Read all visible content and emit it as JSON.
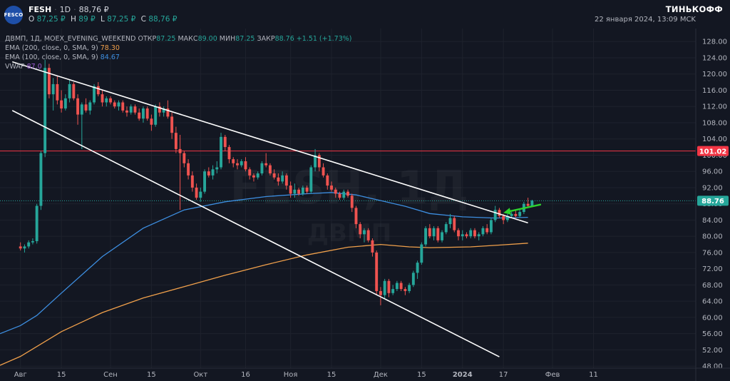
{
  "header": {
    "logo_text": "FESCO",
    "symbol": "FESH",
    "interval": "1D",
    "last_price": "88,76 ₽",
    "ohlc": [
      {
        "label": "O",
        "value": "87,25 ₽"
      },
      {
        "label": "H",
        "value": "89 ₽"
      },
      {
        "label": "L",
        "value": "87,25 ₽"
      },
      {
        "label": "C",
        "value": "88,76 ₽"
      }
    ],
    "brand": "ТИНЬКОФФ",
    "datetime": "22 января 2024, 13:09 MCK"
  },
  "indicators": {
    "main_line": {
      "prefix": "ДВМП, 1Д, MOEX_EVENING_WEEKEND",
      "open_label": "ОТКР",
      "open_value": "87.25",
      "high_label": "МАКС",
      "high_value": "89.00",
      "low_label": "МИН",
      "low_value": "87.25",
      "close_label": "ЗАКР",
      "close_value": "88.76",
      "change": "+1.51 (+1.73%)"
    },
    "ema200": {
      "label": "EMA (200, close, 0, SMA, 9)",
      "value": "78.30"
    },
    "ema100": {
      "label": "EMA (100, close, 0, SMA, 9)",
      "value": "84.67"
    },
    "vwap": {
      "label": "VWAP",
      "value": "87.0"
    }
  },
  "watermark": {
    "symbol": "FESH, 1Д",
    "name": "ДВМП"
  },
  "chart_data": {
    "type": "candlestick",
    "y_axis": {
      "ticks": [
        48,
        52,
        56,
        60,
        64,
        68,
        72,
        76,
        80,
        84,
        88,
        92,
        96,
        100,
        104,
        108,
        112,
        116,
        120,
        124,
        128
      ],
      "tick_labels": [
        "48.00",
        "52.00",
        "56.00",
        "60.00",
        "64.00",
        "68.00",
        "72.00",
        "76.00",
        "80.00",
        "84.00",
        "88.00",
        "92.00",
        "96.00",
        "100.00",
        "104.00",
        "108.00",
        "112.00",
        "116.00",
        "120.00",
        "124.00",
        "128.00"
      ],
      "range": [
        47.5,
        130.5
      ]
    },
    "x_axis": {
      "range_index": [
        -5,
        165
      ],
      "ticks": [
        {
          "label": "Авг",
          "i": 0
        },
        {
          "label": "15",
          "i": 10
        },
        {
          "label": "Сен",
          "i": 22
        },
        {
          "label": "15",
          "i": 32
        },
        {
          "label": "Окт",
          "i": 44
        },
        {
          "label": "16",
          "i": 55
        },
        {
          "label": "Ноя",
          "i": 66
        },
        {
          "label": "15",
          "i": 76
        },
        {
          "label": "Дек",
          "i": 88
        },
        {
          "label": "15",
          "i": 98
        },
        {
          "label": "2024",
          "i": 108
        },
        {
          "label": "17",
          "i": 118
        },
        {
          "label": "Фев",
          "i": 130
        },
        {
          "label": "11",
          "i": 140
        }
      ]
    },
    "price_labels": [
      {
        "value": 101.02,
        "text": "101.02",
        "color": "#f23645"
      },
      {
        "value": 88.76,
        "text": "88.76",
        "color": "#26a69a"
      }
    ],
    "horizontal_line": {
      "value": 101.02,
      "color": "#f23645"
    },
    "last_price_line": {
      "value": 88.76,
      "color": "#26a69a"
    },
    "trendlines": [
      {
        "i1": -2,
        "v1": 123.0,
        "i2": 124,
        "v2": 83.3,
        "color": "#ffffff"
      },
      {
        "i1": -2,
        "v1": 111.0,
        "i2": 117,
        "v2": 50.3,
        "color": "#ffffff"
      }
    ],
    "arrow": {
      "from_i": 127,
      "from_v": 87.8,
      "to_i": 118,
      "to_v": 85.8,
      "color": "#2ed22e"
    },
    "candle_colors": {
      "up": "#26a69a",
      "down": "#ef5350"
    },
    "candles": [
      {
        "o": 77.5,
        "h": 78.5,
        "l": 76.5,
        "c": 77.0
      },
      {
        "o": 77.0,
        "h": 78.0,
        "l": 76.0,
        "c": 77.5
      },
      {
        "o": 77.5,
        "h": 79.0,
        "l": 77.0,
        "c": 78.5
      },
      {
        "o": 78.5,
        "h": 79.5,
        "l": 78.0,
        "c": 78.8
      },
      {
        "o": 78.8,
        "h": 88.0,
        "l": 78.2,
        "c": 87.5
      },
      {
        "o": 87.5,
        "h": 101.0,
        "l": 86.5,
        "c": 100.5
      },
      {
        "o": 100.5,
        "h": 123.5,
        "l": 99.5,
        "c": 121.5
      },
      {
        "o": 121.5,
        "h": 122.5,
        "l": 114.0,
        "c": 115.0
      },
      {
        "o": 115.0,
        "h": 119.0,
        "l": 111.0,
        "c": 117.5
      },
      {
        "o": 117.5,
        "h": 119.5,
        "l": 112.5,
        "c": 113.5
      },
      {
        "o": 113.5,
        "h": 116.0,
        "l": 110.5,
        "c": 111.5
      },
      {
        "o": 111.5,
        "h": 115.0,
        "l": 111.0,
        "c": 114.0
      },
      {
        "o": 114.0,
        "h": 118.5,
        "l": 113.0,
        "c": 117.5
      },
      {
        "o": 117.5,
        "h": 118.0,
        "l": 113.5,
        "c": 114.0
      },
      {
        "o": 114.0,
        "h": 115.0,
        "l": 107.5,
        "c": 110.0
      },
      {
        "o": 110.0,
        "h": 113.0,
        "l": 101.5,
        "c": 112.5
      },
      {
        "o": 112.5,
        "h": 114.0,
        "l": 110.5,
        "c": 111.0
      },
      {
        "o": 111.0,
        "h": 113.5,
        "l": 110.0,
        "c": 113.0
      },
      {
        "o": 113.0,
        "h": 117.5,
        "l": 112.5,
        "c": 117.0
      },
      {
        "o": 117.0,
        "h": 118.0,
        "l": 114.5,
        "c": 115.0
      },
      {
        "o": 115.0,
        "h": 116.0,
        "l": 112.0,
        "c": 113.0
      },
      {
        "o": 113.0,
        "h": 114.5,
        "l": 112.0,
        "c": 114.0
      },
      {
        "o": 114.0,
        "h": 114.5,
        "l": 112.5,
        "c": 113.0
      },
      {
        "o": 113.0,
        "h": 113.5,
        "l": 111.5,
        "c": 112.0
      },
      {
        "o": 112.0,
        "h": 113.5,
        "l": 111.0,
        "c": 113.0
      },
      {
        "o": 113.0,
        "h": 113.5,
        "l": 110.5,
        "c": 111.0
      },
      {
        "o": 111.0,
        "h": 112.0,
        "l": 109.5,
        "c": 110.5
      },
      {
        "o": 110.5,
        "h": 112.5,
        "l": 110.0,
        "c": 112.0
      },
      {
        "o": 112.0,
        "h": 112.5,
        "l": 110.0,
        "c": 110.5
      },
      {
        "o": 110.5,
        "h": 111.5,
        "l": 108.5,
        "c": 109.0
      },
      {
        "o": 109.0,
        "h": 112.0,
        "l": 108.0,
        "c": 111.5
      },
      {
        "o": 111.5,
        "h": 112.0,
        "l": 108.5,
        "c": 109.0
      },
      {
        "o": 109.0,
        "h": 110.0,
        "l": 106.0,
        "c": 107.5
      },
      {
        "o": 107.5,
        "h": 112.5,
        "l": 107.0,
        "c": 112.0
      },
      {
        "o": 112.0,
        "h": 113.0,
        "l": 109.5,
        "c": 110.5
      },
      {
        "o": 110.5,
        "h": 112.0,
        "l": 109.5,
        "c": 111.5
      },
      {
        "o": 111.5,
        "h": 113.5,
        "l": 109.0,
        "c": 109.5
      },
      {
        "o": 109.5,
        "h": 110.5,
        "l": 104.0,
        "c": 105.5
      },
      {
        "o": 105.5,
        "h": 107.0,
        "l": 100.5,
        "c": 101.5
      },
      {
        "o": 101.5,
        "h": 105.0,
        "l": 86.5,
        "c": 100.5
      },
      {
        "o": 100.5,
        "h": 101.0,
        "l": 97.0,
        "c": 98.0
      },
      {
        "o": 98.0,
        "h": 99.0,
        "l": 94.0,
        "c": 95.0
      },
      {
        "o": 95.0,
        "h": 96.0,
        "l": 91.0,
        "c": 92.0
      },
      {
        "o": 92.0,
        "h": 93.0,
        "l": 89.0,
        "c": 89.5
      },
      {
        "o": 89.5,
        "h": 92.0,
        "l": 88.5,
        "c": 91.0
      },
      {
        "o": 91.0,
        "h": 96.5,
        "l": 90.5,
        "c": 96.0
      },
      {
        "o": 96.0,
        "h": 97.0,
        "l": 94.5,
        "c": 95.0
      },
      {
        "o": 95.0,
        "h": 97.5,
        "l": 94.0,
        "c": 96.5
      },
      {
        "o": 96.5,
        "h": 98.5,
        "l": 95.5,
        "c": 97.0
      },
      {
        "o": 97.0,
        "h": 105.5,
        "l": 96.5,
        "c": 104.5
      },
      {
        "o": 104.5,
        "h": 105.0,
        "l": 101.0,
        "c": 102.0
      },
      {
        "o": 102.0,
        "h": 102.5,
        "l": 98.0,
        "c": 99.0
      },
      {
        "o": 99.0,
        "h": 99.5,
        "l": 97.0,
        "c": 98.0
      },
      {
        "o": 98.0,
        "h": 99.0,
        "l": 96.5,
        "c": 97.5
      },
      {
        "o": 97.5,
        "h": 99.0,
        "l": 97.0,
        "c": 98.5
      },
      {
        "o": 98.5,
        "h": 99.5,
        "l": 96.0,
        "c": 96.5
      },
      {
        "o": 96.5,
        "h": 97.0,
        "l": 94.0,
        "c": 95.0
      },
      {
        "o": 95.0,
        "h": 95.5,
        "l": 93.5,
        "c": 94.5
      },
      {
        "o": 94.5,
        "h": 96.0,
        "l": 94.0,
        "c": 95.5
      },
      {
        "o": 95.5,
        "h": 98.5,
        "l": 95.0,
        "c": 98.0
      },
      {
        "o": 98.0,
        "h": 100.5,
        "l": 97.0,
        "c": 97.5
      },
      {
        "o": 97.5,
        "h": 98.0,
        "l": 95.0,
        "c": 95.5
      },
      {
        "o": 95.5,
        "h": 96.5,
        "l": 94.0,
        "c": 94.5
      },
      {
        "o": 94.5,
        "h": 95.5,
        "l": 92.5,
        "c": 93.5
      },
      {
        "o": 93.5,
        "h": 96.0,
        "l": 93.0,
        "c": 95.0
      },
      {
        "o": 95.0,
        "h": 95.5,
        "l": 91.5,
        "c": 92.5
      },
      {
        "o": 92.5,
        "h": 93.5,
        "l": 89.5,
        "c": 90.5
      },
      {
        "o": 90.5,
        "h": 93.0,
        "l": 89.5,
        "c": 91.5
      },
      {
        "o": 91.5,
        "h": 92.0,
        "l": 90.0,
        "c": 90.5
      },
      {
        "o": 90.5,
        "h": 92.5,
        "l": 90.0,
        "c": 92.0
      },
      {
        "o": 92.0,
        "h": 92.5,
        "l": 90.5,
        "c": 91.0
      },
      {
        "o": 91.0,
        "h": 97.5,
        "l": 90.5,
        "c": 97.0
      },
      {
        "o": 97.0,
        "h": 101.5,
        "l": 96.0,
        "c": 100.0
      },
      {
        "o": 100.0,
        "h": 100.5,
        "l": 96.0,
        "c": 97.0
      },
      {
        "o": 97.0,
        "h": 98.0,
        "l": 94.5,
        "c": 95.0
      },
      {
        "o": 95.0,
        "h": 95.5,
        "l": 91.5,
        "c": 92.5
      },
      {
        "o": 92.5,
        "h": 93.5,
        "l": 91.0,
        "c": 91.5
      },
      {
        "o": 91.5,
        "h": 92.0,
        "l": 89.5,
        "c": 90.5
      },
      {
        "o": 90.5,
        "h": 91.0,
        "l": 89.0,
        "c": 89.5
      },
      {
        "o": 89.5,
        "h": 91.5,
        "l": 89.0,
        "c": 91.0
      },
      {
        "o": 91.0,
        "h": 91.5,
        "l": 89.5,
        "c": 90.0
      },
      {
        "o": 90.0,
        "h": 90.5,
        "l": 86.0,
        "c": 87.0
      },
      {
        "o": 87.0,
        "h": 87.5,
        "l": 82.0,
        "c": 83.0
      },
      {
        "o": 83.0,
        "h": 83.5,
        "l": 79.5,
        "c": 80.5
      },
      {
        "o": 80.5,
        "h": 82.0,
        "l": 78.5,
        "c": 81.5
      },
      {
        "o": 81.5,
        "h": 82.0,
        "l": 78.5,
        "c": 79.0
      },
      {
        "o": 79.0,
        "h": 79.5,
        "l": 75.0,
        "c": 76.0
      },
      {
        "o": 76.0,
        "h": 76.5,
        "l": 65.5,
        "c": 66.5
      },
      {
        "o": 66.5,
        "h": 67.5,
        "l": 63.0,
        "c": 65.5
      },
      {
        "o": 65.5,
        "h": 69.5,
        "l": 64.5,
        "c": 69.0
      },
      {
        "o": 69.0,
        "h": 69.5,
        "l": 65.0,
        "c": 66.0
      },
      {
        "o": 66.0,
        "h": 68.0,
        "l": 65.5,
        "c": 67.0
      },
      {
        "o": 67.0,
        "h": 69.0,
        "l": 66.5,
        "c": 68.5
      },
      {
        "o": 68.5,
        "h": 69.0,
        "l": 66.5,
        "c": 67.0
      },
      {
        "o": 67.0,
        "h": 67.5,
        "l": 65.5,
        "c": 66.5
      },
      {
        "o": 66.5,
        "h": 68.5,
        "l": 66.0,
        "c": 68.0
      },
      {
        "o": 68.0,
        "h": 71.5,
        "l": 67.5,
        "c": 71.0
      },
      {
        "o": 71.0,
        "h": 74.0,
        "l": 69.5,
        "c": 73.5
      },
      {
        "o": 73.5,
        "h": 78.5,
        "l": 73.0,
        "c": 78.0
      },
      {
        "o": 78.0,
        "h": 82.5,
        "l": 77.5,
        "c": 82.0
      },
      {
        "o": 82.0,
        "h": 83.0,
        "l": 79.5,
        "c": 80.0
      },
      {
        "o": 80.0,
        "h": 82.5,
        "l": 79.0,
        "c": 82.0
      },
      {
        "o": 82.0,
        "h": 82.5,
        "l": 78.5,
        "c": 79.0
      },
      {
        "o": 79.0,
        "h": 81.5,
        "l": 78.5,
        "c": 81.0
      },
      {
        "o": 81.0,
        "h": 83.5,
        "l": 80.5,
        "c": 83.0
      },
      {
        "o": 83.0,
        "h": 85.5,
        "l": 82.0,
        "c": 84.5
      },
      {
        "o": 84.5,
        "h": 85.0,
        "l": 81.0,
        "c": 81.5
      },
      {
        "o": 81.5,
        "h": 82.0,
        "l": 79.0,
        "c": 80.0
      },
      {
        "o": 80.0,
        "h": 81.5,
        "l": 79.0,
        "c": 80.5
      },
      {
        "o": 80.5,
        "h": 81.0,
        "l": 79.5,
        "c": 80.0
      },
      {
        "o": 80.0,
        "h": 82.0,
        "l": 79.5,
        "c": 81.5
      },
      {
        "o": 81.5,
        "h": 82.0,
        "l": 79.5,
        "c": 80.0
      },
      {
        "o": 80.0,
        "h": 81.0,
        "l": 79.0,
        "c": 80.5
      },
      {
        "o": 80.5,
        "h": 82.5,
        "l": 80.0,
        "c": 82.0
      },
      {
        "o": 82.0,
        "h": 83.0,
        "l": 80.5,
        "c": 81.0
      },
      {
        "o": 81.0,
        "h": 84.5,
        "l": 80.5,
        "c": 84.0
      },
      {
        "o": 84.0,
        "h": 87.5,
        "l": 83.5,
        "c": 86.5
      },
      {
        "o": 86.5,
        "h": 87.0,
        "l": 84.5,
        "c": 85.0
      },
      {
        "o": 85.0,
        "h": 85.5,
        "l": 83.0,
        "c": 84.0
      },
      {
        "o": 84.0,
        "h": 85.5,
        "l": 83.5,
        "c": 85.0
      },
      {
        "o": 85.0,
        "h": 86.0,
        "l": 84.5,
        "c": 85.5
      },
      {
        "o": 85.5,
        "h": 86.5,
        "l": 84.5,
        "c": 85.0
      },
      {
        "o": 85.0,
        "h": 86.5,
        "l": 84.5,
        "c": 86.0
      },
      {
        "o": 86.0,
        "h": 88.5,
        "l": 85.5,
        "c": 88.0
      },
      {
        "o": 88.0,
        "h": 89.5,
        "l": 87.0,
        "c": 87.5
      },
      {
        "o": 87.25,
        "h": 89.0,
        "l": 87.25,
        "c": 88.76
      }
    ],
    "ema200": [
      {
        "i": -5,
        "v": 48.2
      },
      {
        "i": 0,
        "v": 50.4
      },
      {
        "i": 10,
        "v": 56.5
      },
      {
        "i": 20,
        "v": 61.2
      },
      {
        "i": 30,
        "v": 64.8
      },
      {
        "i": 40,
        "v": 67.6
      },
      {
        "i": 50,
        "v": 70.4
      },
      {
        "i": 60,
        "v": 73.0
      },
      {
        "i": 70,
        "v": 75.4
      },
      {
        "i": 80,
        "v": 77.3
      },
      {
        "i": 88,
        "v": 78.0
      },
      {
        "i": 95,
        "v": 77.4
      },
      {
        "i": 100,
        "v": 77.2
      },
      {
        "i": 110,
        "v": 77.4
      },
      {
        "i": 118,
        "v": 77.9
      },
      {
        "i": 124,
        "v": 78.3
      }
    ],
    "ema100": [
      {
        "i": -5,
        "v": 56.0
      },
      {
        "i": 0,
        "v": 58.0
      },
      {
        "i": 4,
        "v": 60.5
      },
      {
        "i": 10,
        "v": 66.0
      },
      {
        "i": 20,
        "v": 75.0
      },
      {
        "i": 30,
        "v": 82.0
      },
      {
        "i": 40,
        "v": 86.5
      },
      {
        "i": 50,
        "v": 88.5
      },
      {
        "i": 60,
        "v": 89.8
      },
      {
        "i": 70,
        "v": 90.5
      },
      {
        "i": 76,
        "v": 90.8
      },
      {
        "i": 82,
        "v": 90.2
      },
      {
        "i": 88,
        "v": 88.8
      },
      {
        "i": 94,
        "v": 87.4
      },
      {
        "i": 100,
        "v": 85.6
      },
      {
        "i": 108,
        "v": 84.8
      },
      {
        "i": 116,
        "v": 84.5
      },
      {
        "i": 124,
        "v": 84.67
      }
    ]
  }
}
